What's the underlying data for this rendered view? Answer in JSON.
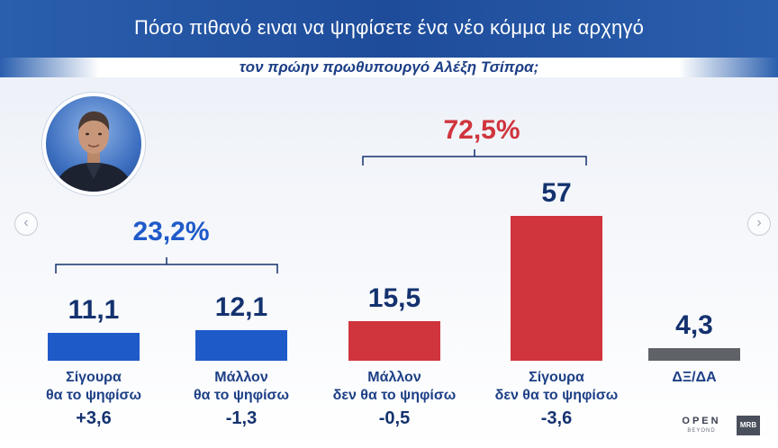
{
  "header": {
    "title_line1": "Πόσο πιθανό ειναι να ψηφίσετε ένα νέο κόμμα με αρχηγό",
    "title_line2": "τον πρώην πρωθυπουργό Αλέξη Τσίπρα;"
  },
  "groups": {
    "support_total": "23,2%",
    "oppose_total": "72,5%"
  },
  "colors": {
    "header_blue": "#2a5fae",
    "support_blue": "#1f5ac9",
    "oppose_red": "#d0343d",
    "neutral_gray": "#5f6368",
    "value_navy": "#14326f"
  },
  "chart_data": {
    "type": "bar",
    "categories": [
      "Σίγουρα θα το ψηφίσω",
      "Μάλλον θα το ψηφίσω",
      "Μάλλον δεν θα το ψηφίσω",
      "Σίγουρα δεν θα το ψηφίσω",
      "ΔΞ/ΔΑ"
    ],
    "values": [
      11.1,
      12.1,
      15.5,
      57,
      4.3
    ],
    "value_labels": [
      "11,1",
      "12,1",
      "15,5",
      "57",
      "4,3"
    ],
    "category_label_lines": [
      [
        "Σίγουρα",
        "θα το ψηφίσω"
      ],
      [
        "Μάλλον",
        "θα το ψηφίσω"
      ],
      [
        "Μάλλον",
        "δεν θα το ψηφίσω"
      ],
      [
        "Σίγουρα",
        "δεν θα το ψηφίσω"
      ],
      [
        "ΔΞ/ΔΑ"
      ]
    ],
    "changes": [
      "+3,6",
      "-1,3",
      "-0,5",
      "-3,6",
      ""
    ],
    "bar_colors": [
      "#1f5ac9",
      "#1f5ac9",
      "#d0343d",
      "#d0343d",
      "#5f6368"
    ],
    "ylim": [
      0,
      57
    ],
    "grid": false
  },
  "logos": {
    "open": "OPEN",
    "open_sub": "BEYOND",
    "mrb": "MRB"
  },
  "nav": {
    "left": "‹",
    "right": "›"
  }
}
